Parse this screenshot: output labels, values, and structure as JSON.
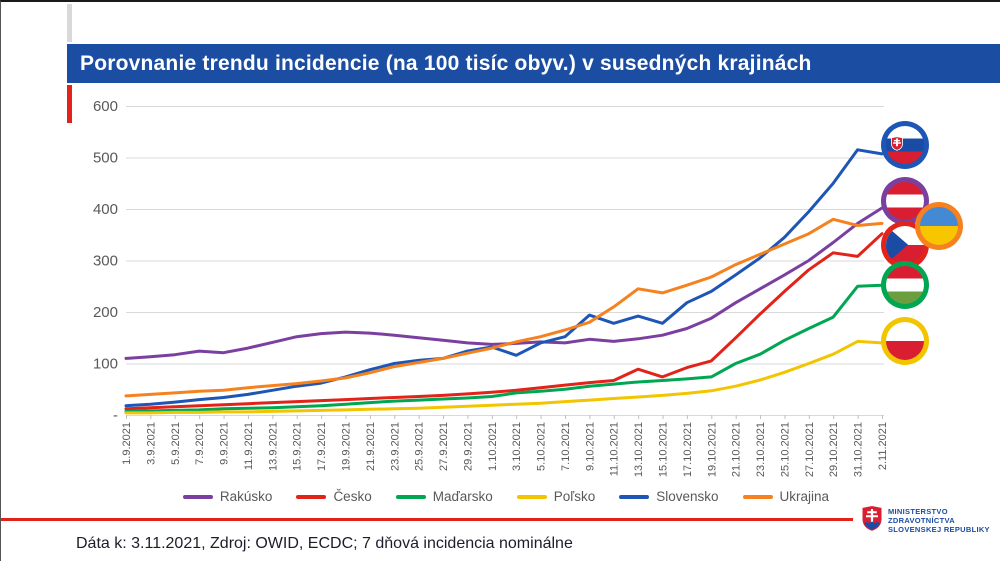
{
  "title_bar": {
    "text": "Porovnanie trendu incidencie (na 100 tisíc obyv.) v susedných krajinách"
  },
  "accent": {
    "title_bar_color": "#1B4DA2",
    "rule_color": "#E2231A"
  },
  "chart_data": {
    "type": "line",
    "title": "Porovnanie trendu incidencie (na 100 tisíc obyv.) v susedných krajinách",
    "xlabel": "",
    "ylabel": "",
    "ylim": [
      0,
      600
    ],
    "yticks": [
      0,
      100,
      200,
      300,
      400,
      500,
      600
    ],
    "ytick_labels": [
      "-",
      "100",
      "200",
      "300",
      "400",
      "500",
      "600"
    ],
    "grid": true,
    "legend_position": "bottom",
    "x_labels": [
      "1.9.2021",
      "3.9.2021",
      "5.9.2021",
      "7.9.2021",
      "9.9.2021",
      "11.9.2021",
      "13.9.2021",
      "15.9.2021",
      "17.9.2021",
      "19.9.2021",
      "21.9.2021",
      "23.9.2021",
      "25.9.2021",
      "27.9.2021",
      "29.9.2021",
      "1.10.2021",
      "3.10.2021",
      "5.10.2021",
      "7.10.2021",
      "9.10.2021",
      "11.10.2021",
      "13.10.2021",
      "15.10.2021",
      "17.10.2021",
      "19.10.2021",
      "21.10.2021",
      "23.10.2021",
      "25.10.2021",
      "27.10.2021",
      "29.10.2021",
      "31.10.2021",
      "2.11.2021"
    ],
    "series": [
      {
        "name": "Rakúsko",
        "color": "#7B3FA0",
        "values": [
          110,
          113,
          117,
          124,
          121,
          130,
          141,
          152,
          158,
          161,
          159,
          155,
          150,
          145,
          140,
          137,
          139,
          142,
          140,
          147,
          143,
          148,
          155,
          168,
          188,
          218,
          245,
          272,
          300,
          335,
          372,
          402
        ]
      },
      {
        "name": "Česko",
        "color": "#E2231A",
        "values": [
          12,
          14,
          16,
          18,
          20,
          22,
          24,
          26,
          28,
          30,
          32,
          34,
          36,
          38,
          41,
          44,
          48,
          53,
          58,
          63,
          67,
          89,
          74,
          92,
          105,
          150,
          196,
          240,
          282,
          315,
          308,
          352
        ]
      },
      {
        "name": "Maďarsko",
        "color": "#00A651",
        "values": [
          7,
          8,
          9,
          10,
          12,
          13,
          14,
          16,
          18,
          21,
          24,
          27,
          29,
          31,
          33,
          36,
          43,
          46,
          50,
          56,
          60,
          64,
          67,
          70,
          74,
          100,
          118,
          145,
          168,
          190,
          250,
          252
        ]
      },
      {
        "name": "Poľsko",
        "color": "#F2C500",
        "values": [
          4,
          4,
          5,
          5,
          6,
          6,
          7,
          8,
          9,
          10,
          11,
          12,
          13,
          15,
          17,
          19,
          21,
          23,
          26,
          29,
          32,
          35,
          38,
          42,
          47,
          56,
          68,
          83,
          100,
          118,
          143,
          140
        ]
      },
      {
        "name": "Slovensko",
        "color": "#1D56B5",
        "values": [
          18,
          21,
          25,
          30,
          34,
          40,
          48,
          56,
          62,
          74,
          88,
          100,
          106,
          110,
          124,
          132,
          116,
          140,
          152,
          194,
          178,
          192,
          178,
          218,
          240,
          272,
          305,
          345,
          395,
          450,
          515,
          507
        ]
      },
      {
        "name": "Ukrajina",
        "color": "#F5821E",
        "values": [
          37,
          40,
          43,
          46,
          48,
          53,
          57,
          61,
          66,
          72,
          82,
          94,
          102,
          110,
          120,
          130,
          142,
          152,
          165,
          180,
          210,
          245,
          237,
          252,
          268,
          292,
          312,
          332,
          352,
          380,
          368,
          372
        ]
      }
    ]
  },
  "flags": [
    {
      "country": "Slovensko",
      "flag": "sk",
      "ring": "#1D56B5"
    },
    {
      "country": "Rakúsko",
      "flag": "at",
      "ring": "#7B3FA0"
    },
    {
      "country": "Ukrajina",
      "flag": "ua",
      "ring": "#F5821E"
    },
    {
      "country": "Česko",
      "flag": "cz",
      "ring": "#E2231A"
    },
    {
      "country": "Maďarsko",
      "flag": "hu",
      "ring": "#00A651"
    },
    {
      "country": "Poľsko",
      "flag": "pl",
      "ring": "#F2C500"
    }
  ],
  "footer": {
    "note": "Dáta k: 3.11.2021, Zdroj: OWID, ECDC; 7 dňová incidencia nominálne"
  },
  "ministry": {
    "line1": "MINISTERSTVO",
    "line2": "ZDRAVOTNÍCTVA",
    "line3": "SLOVENSKEJ REPUBLIKY"
  }
}
